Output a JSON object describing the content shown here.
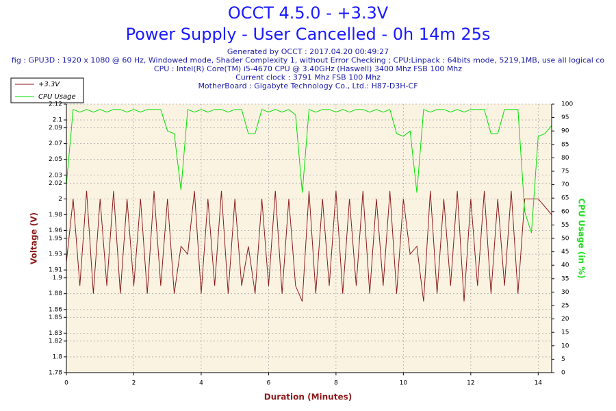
{
  "chart_data": {
    "type": "line",
    "title": "OCCT 4.5.0 - +3.3V",
    "subtitle": "Power Supply - User Cancelled - 0h 14m 25s",
    "info": [
      "Generated by OCCT : 2017.04.20 00:49:27",
      "fig : GPU3D : 1920 x 1080 @ 60 Hz, Windowed mode, Shader Complexity 1, without Error Checking ; CPU:Linpack : 64bits mode, 5219,1MB, use all logical co",
      "CPU : Intel(R) Core(TM) i5-4670 CPU @ 3.40GHz (Haswell) 3400 Mhz FSB 100 Mhz",
      "Current clock : 3791 Mhz FSB 100 Mhz",
      "MotherBoard : Gigabyte Technology Co., Ltd.: H87-D3H-CF"
    ],
    "xlabel": "Duration (Minutes)",
    "ylabel": "Voltage (V)",
    "y2label": "CPU Usage (in %)",
    "legend": "top-left",
    "grid": true,
    "xlim": [
      0,
      14.4
    ],
    "xticks": [
      0,
      2,
      4,
      6,
      8,
      10,
      12,
      14
    ],
    "ylim": [
      1.78,
      2.12
    ],
    "yticks": [
      1.78,
      1.8,
      1.82,
      1.83,
      1.85,
      1.86,
      1.88,
      1.9,
      1.91,
      1.93,
      1.95,
      1.96,
      1.98,
      2.0,
      2.02,
      2.03,
      2.05,
      2.07,
      2.09,
      2.1,
      2.12
    ],
    "y2lim": [
      0,
      100
    ],
    "y2ticks": [
      0,
      5,
      10,
      15,
      20,
      25,
      30,
      35,
      40,
      45,
      50,
      55,
      60,
      65,
      70,
      75,
      80,
      85,
      90,
      95,
      100
    ],
    "x": [
      0,
      0.2,
      0.4,
      0.6,
      0.8,
      1.0,
      1.2,
      1.4,
      1.6,
      1.8,
      2.0,
      2.2,
      2.4,
      2.6,
      2.8,
      3.0,
      3.2,
      3.4,
      3.6,
      3.8,
      4.0,
      4.2,
      4.4,
      4.6,
      4.8,
      5.0,
      5.2,
      5.4,
      5.6,
      5.8,
      6.0,
      6.2,
      6.4,
      6.6,
      6.8,
      7.0,
      7.2,
      7.4,
      7.6,
      7.8,
      8.0,
      8.2,
      8.4,
      8.6,
      8.8,
      9.0,
      9.2,
      9.4,
      9.6,
      9.8,
      10.0,
      10.2,
      10.4,
      10.6,
      10.8,
      11.0,
      11.2,
      11.4,
      11.6,
      11.8,
      12.0,
      12.2,
      12.4,
      12.6,
      12.8,
      13.0,
      13.2,
      13.4,
      13.6,
      13.8,
      14.0,
      14.2,
      14.4
    ],
    "series": [
      {
        "name": "+3.3V",
        "color": "#8b1a1a",
        "axis": "y",
        "values": [
          1.92,
          2.0,
          1.89,
          2.01,
          1.88,
          2.0,
          1.89,
          2.01,
          1.88,
          2.0,
          1.89,
          2.0,
          1.88,
          2.01,
          1.89,
          2.0,
          1.88,
          1.94,
          1.93,
          2.01,
          1.88,
          2.0,
          1.89,
          2.01,
          1.88,
          2.0,
          1.89,
          1.94,
          1.88,
          2.0,
          1.89,
          2.01,
          1.88,
          2.0,
          1.89,
          1.87,
          2.01,
          1.88,
          2.0,
          1.89,
          2.01,
          1.88,
          2.0,
          1.89,
          2.01,
          1.88,
          2.0,
          1.89,
          2.01,
          1.88,
          2.0,
          1.93,
          1.94,
          1.87,
          2.01,
          1.88,
          2.0,
          1.89,
          2.01,
          1.87,
          2.0,
          1.89,
          2.01,
          1.88,
          2.0,
          1.89,
          2.01,
          1.88,
          2.0,
          2.0,
          2.0,
          1.99,
          1.98
        ]
      },
      {
        "name": "CPU Usage",
        "color": "#00e000",
        "axis": "y2",
        "values": [
          70,
          98,
          97,
          98,
          97,
          98,
          97,
          98,
          98,
          97,
          98,
          97,
          98,
          98,
          98,
          90,
          89,
          68,
          98,
          97,
          98,
          97,
          98,
          98,
          97,
          98,
          98,
          89,
          89,
          98,
          97,
          98,
          97,
          98,
          96,
          67,
          98,
          97,
          98,
          98,
          97,
          98,
          97,
          98,
          98,
          97,
          98,
          97,
          98,
          89,
          88,
          90,
          67,
          98,
          97,
          98,
          98,
          97,
          98,
          97,
          98,
          98,
          98,
          89,
          89,
          98,
          98,
          98,
          60,
          52,
          88,
          89,
          92
        ]
      }
    ]
  }
}
